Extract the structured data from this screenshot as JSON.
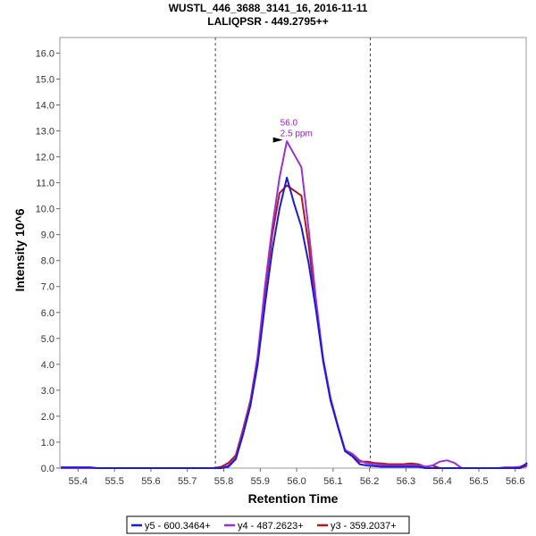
{
  "chart_data": {
    "type": "line",
    "title": "WUSTL_446_3688_3141_16, 2016-11-11",
    "subtitle": "LALIQPSR - 449.2795++",
    "xlabel": "Retention Time",
    "ylabel": "Intensity 10^6",
    "xlim": [
      55.35,
      56.63
    ],
    "ylim": [
      0,
      16.6
    ],
    "x_ticks": [
      "55.4",
      "55.5",
      "55.6",
      "55.7",
      "55.8",
      "55.9",
      "56.0",
      "56.1",
      "56.2",
      "56.3",
      "56.4",
      "56.5",
      "56.6"
    ],
    "y_ticks": [
      "0.0",
      "1.0",
      "2.0",
      "3.0",
      "4.0",
      "5.0",
      "6.0",
      "7.0",
      "8.0",
      "9.0",
      "10.0",
      "11.0",
      "12.0",
      "13.0",
      "14.0",
      "15.0",
      "16.0"
    ],
    "vlines": [
      55.777,
      56.202
    ],
    "grid": false,
    "legend_position": "bottom",
    "annotation": {
      "x": 55.972,
      "y": 12.62,
      "lines": [
        "56.0",
        "2.5 ppm"
      ],
      "color": "#9a1cd0"
    },
    "series": [
      {
        "name": "y5 - 600.3464+",
        "color": "#1a1adc",
        "x": [
          55.353,
          55.373,
          55.393,
          55.413,
          55.433,
          55.453,
          55.473,
          55.493,
          55.513,
          55.533,
          55.553,
          55.573,
          55.593,
          55.613,
          55.633,
          55.653,
          55.673,
          55.693,
          55.713,
          55.733,
          55.753,
          55.773,
          55.793,
          55.813,
          55.833,
          55.853,
          55.873,
          55.893,
          55.913,
          55.933,
          55.953,
          55.973,
          55.993,
          56.013,
          56.033,
          56.053,
          56.073,
          56.093,
          56.113,
          56.133,
          56.153,
          56.173,
          56.193,
          56.213,
          56.233,
          56.253,
          56.273,
          56.293,
          56.313,
          56.333,
          56.353,
          56.373,
          56.393,
          56.413,
          56.433,
          56.453,
          56.473,
          56.493,
          56.513,
          56.533,
          56.553,
          56.573,
          56.593,
          56.613,
          56.633
        ],
        "y": [
          0.03,
          0.03,
          0.03,
          0.03,
          0.03,
          0.0,
          0.0,
          0.0,
          0.0,
          0.0,
          0.0,
          0.0,
          0.0,
          0.0,
          0.0,
          0.0,
          0.0,
          0.0,
          0.0,
          0.0,
          0.0,
          0.0,
          0.0,
          0.05,
          0.35,
          1.3,
          2.4,
          4.0,
          6.3,
          8.4,
          10.0,
          11.2,
          10.2,
          9.3,
          7.9,
          6.1,
          4.1,
          2.6,
          1.6,
          0.65,
          0.45,
          0.15,
          0.1,
          0.08,
          0.05,
          0.05,
          0.05,
          0.05,
          0.05,
          0.05,
          0.0,
          0.0,
          0.0,
          0.0,
          0.0,
          0.0,
          0.0,
          0.0,
          0.0,
          0.0,
          0.0,
          0.0,
          0.0,
          0.0,
          0.2
        ]
      },
      {
        "name": "y4 - 487.2623+",
        "color": "#9a30d6",
        "x": [
          55.353,
          55.373,
          55.393,
          55.413,
          55.433,
          55.453,
          55.473,
          55.493,
          55.513,
          55.533,
          55.553,
          55.573,
          55.593,
          55.613,
          55.633,
          55.653,
          55.673,
          55.693,
          55.713,
          55.733,
          55.753,
          55.773,
          55.793,
          55.813,
          55.833,
          55.853,
          55.873,
          55.893,
          55.913,
          55.933,
          55.953,
          55.973,
          55.993,
          56.013,
          56.033,
          56.053,
          56.073,
          56.093,
          56.113,
          56.133,
          56.153,
          56.173,
          56.193,
          56.213,
          56.233,
          56.253,
          56.273,
          56.293,
          56.313,
          56.333,
          56.353,
          56.373,
          56.393,
          56.413,
          56.433,
          56.453,
          56.473,
          56.493,
          56.513,
          56.533,
          56.553,
          56.573,
          56.593,
          56.613,
          56.633
        ],
        "y": [
          0.0,
          0.0,
          0.0,
          0.0,
          0.0,
          0.0,
          0.0,
          0.0,
          0.0,
          0.0,
          0.0,
          0.0,
          0.0,
          0.0,
          0.0,
          0.0,
          0.0,
          0.0,
          0.0,
          0.0,
          0.0,
          0.0,
          0.0,
          0.1,
          0.4,
          1.4,
          2.5,
          4.3,
          7.0,
          9.3,
          11.2,
          12.6,
          12.1,
          11.6,
          9.2,
          6.5,
          4.2,
          2.7,
          1.65,
          0.7,
          0.55,
          0.3,
          0.18,
          0.15,
          0.12,
          0.1,
          0.1,
          0.1,
          0.12,
          0.1,
          0.05,
          0.1,
          0.25,
          0.3,
          0.2,
          0.0,
          0.0,
          0.0,
          0.0,
          0.0,
          0.0,
          0.03,
          0.03,
          0.05,
          0.15
        ]
      },
      {
        "name": "y3 - 359.2037+",
        "color": "#b01818",
        "x": [
          55.353,
          55.373,
          55.393,
          55.413,
          55.433,
          55.453,
          55.473,
          55.493,
          55.513,
          55.533,
          55.553,
          55.573,
          55.593,
          55.613,
          55.633,
          55.653,
          55.673,
          55.693,
          55.713,
          55.733,
          55.753,
          55.773,
          55.793,
          55.813,
          55.833,
          55.853,
          55.873,
          55.893,
          55.913,
          55.933,
          55.953,
          55.973,
          55.993,
          56.013,
          56.033,
          56.053,
          56.073,
          56.093,
          56.113,
          56.133,
          56.153,
          56.173,
          56.193,
          56.213,
          56.233,
          56.253,
          56.273,
          56.293,
          56.313,
          56.333,
          56.353,
          56.373,
          56.393,
          56.413,
          56.433,
          56.453,
          56.473,
          56.493,
          56.513,
          56.533,
          56.553,
          56.573,
          56.593,
          56.613,
          56.633
        ],
        "y": [
          0.0,
          0.0,
          0.0,
          0.0,
          0.0,
          0.0,
          0.0,
          0.0,
          0.0,
          0.0,
          0.0,
          0.0,
          0.0,
          0.0,
          0.0,
          0.0,
          0.0,
          0.0,
          0.0,
          0.0,
          0.0,
          0.0,
          0.05,
          0.2,
          0.5,
          1.5,
          2.6,
          4.3,
          6.8,
          9.0,
          10.6,
          10.9,
          10.7,
          10.5,
          8.6,
          6.2,
          4.2,
          2.7,
          1.6,
          0.65,
          0.5,
          0.25,
          0.25,
          0.2,
          0.18,
          0.15,
          0.15,
          0.15,
          0.18,
          0.15,
          0.05,
          0.1,
          0.0,
          0.0,
          0.0,
          0.0,
          0.0,
          0.0,
          0.0,
          0.0,
          0.0,
          0.0,
          0.0,
          0.0,
          0.1
        ]
      }
    ]
  }
}
